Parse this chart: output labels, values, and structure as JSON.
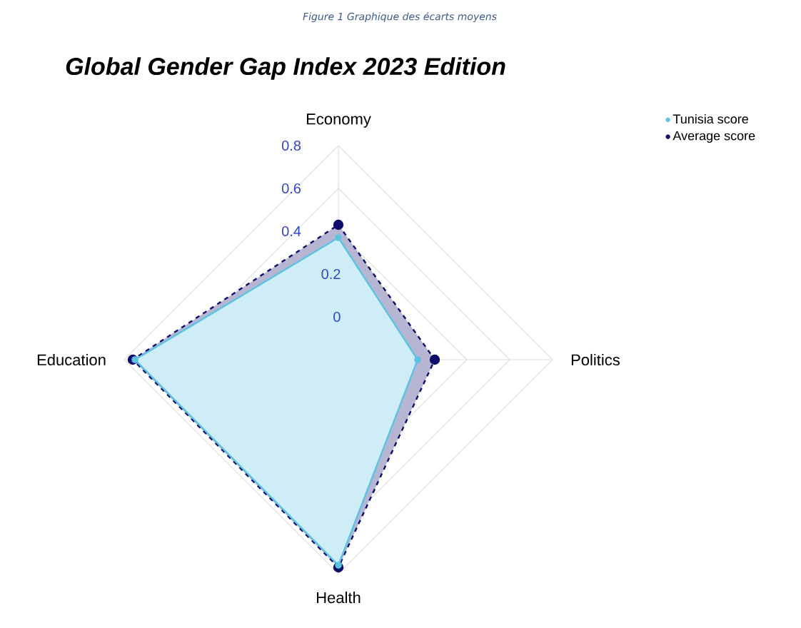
{
  "chart_data": {
    "type": "radar",
    "title": "Global Gender Gap Index 2023 Edition",
    "annotations": [
      "Figure 1  Graphique des écarts moyens"
    ],
    "categories": [
      "Economy",
      "Politics",
      "Health",
      "Education"
    ],
    "ylim": [
      -0.2,
      0.8
    ],
    "yticks": [
      0,
      0.2,
      0.4,
      0.6,
      0.8
    ],
    "grid": true,
    "legend": "top right",
    "marker": "circle",
    "series": [
      {
        "name": "Average score",
        "color": "#0d0d6b",
        "line_style": "dashed",
        "values": [
          0.43,
          0.25,
          0.77,
          0.76
        ]
      },
      {
        "name": "Tunisia score",
        "color": "#5cc3e2",
        "line_style": "solid",
        "values": [
          0.37,
          0.17,
          0.76,
          0.75
        ]
      }
    ]
  }
}
